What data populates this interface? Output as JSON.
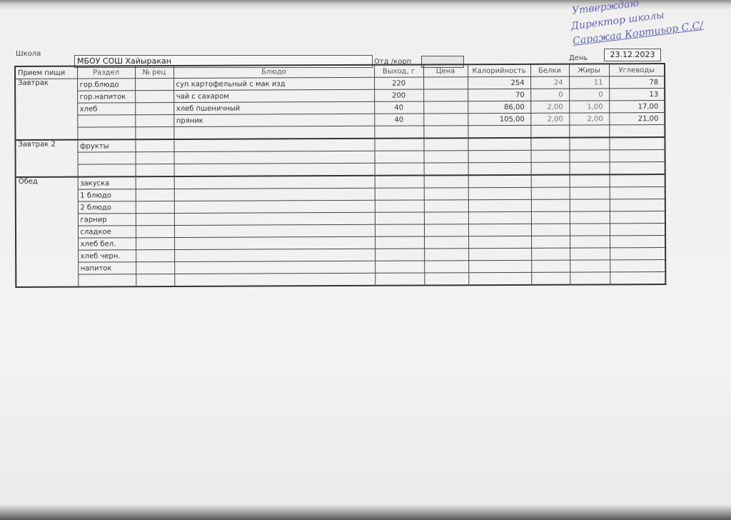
{
  "header": {
    "school_label": "Школа",
    "school_value": "МБОУ СОШ Хайыракан",
    "dept_label": "Отд /корп",
    "dept_value": "",
    "day_label": "День",
    "day_value": "23.12.2023"
  },
  "signature": {
    "lines": [
      "Утверждаю",
      "Директор школы",
      "Саражаа Кортиьор С.С/"
    ]
  },
  "table": {
    "columns": [
      "Прием пищи",
      "Раздел",
      "№ рец",
      "Блюдо",
      "Выход, г",
      "Цена",
      "Калорийность",
      "Белки",
      "Жиры",
      "Углеводы"
    ],
    "groups": [
      {
        "meal": "Завтрак",
        "rows": [
          [
            "гор.блюдо",
            "",
            "суп картофельный с мак изд",
            "220",
            "",
            "254",
            "24",
            "11",
            "78"
          ],
          [
            "гор.напиток",
            "",
            "чай с сахаром",
            "200",
            "",
            "70",
            "0",
            "0",
            "13"
          ],
          [
            "хлеб",
            "",
            "хлеб пшеничный",
            "40",
            "",
            "86,00",
            "2,00",
            "1,00",
            "17,00"
          ],
          [
            "",
            "",
            "пряник",
            "40",
            "",
            "105,00",
            "2,00",
            "2,00",
            "21,00"
          ],
          [
            "",
            "",
            "",
            "",
            "",
            "",
            "",
            "",
            ""
          ]
        ]
      },
      {
        "meal": "Завтрак 2",
        "rows": [
          [
            "фрукты",
            "",
            "",
            "",
            "",
            "",
            "",
            "",
            ""
          ],
          [
            "",
            "",
            "",
            "",
            "",
            "",
            "",
            "",
            ""
          ],
          [
            "",
            "",
            "",
            "",
            "",
            "",
            "",
            "",
            ""
          ]
        ]
      },
      {
        "meal": "Обед",
        "rows": [
          [
            "закуска",
            "",
            "",
            "",
            "",
            "",
            "",
            "",
            ""
          ],
          [
            "1 блюдо",
            "",
            "",
            "",
            "",
            "",
            "",
            "",
            ""
          ],
          [
            "2 блюдо",
            "",
            "",
            "",
            "",
            "",
            "",
            "",
            ""
          ],
          [
            "гарнир",
            "",
            "",
            "",
            "",
            "",
            "",
            "",
            ""
          ],
          [
            "сладкое",
            "",
            "",
            "",
            "",
            "",
            "",
            "",
            ""
          ],
          [
            "хлеб бел.",
            "",
            "",
            "",
            "",
            "",
            "",
            "",
            ""
          ],
          [
            "хлеб черн.",
            "",
            "",
            "",
            "",
            "",
            "",
            "",
            ""
          ],
          [
            "напиток",
            "",
            "",
            "",
            "",
            "",
            "",
            "",
            ""
          ],
          [
            "",
            "",
            "",
            "",
            "",
            "",
            "",
            "",
            ""
          ]
        ]
      }
    ]
  }
}
